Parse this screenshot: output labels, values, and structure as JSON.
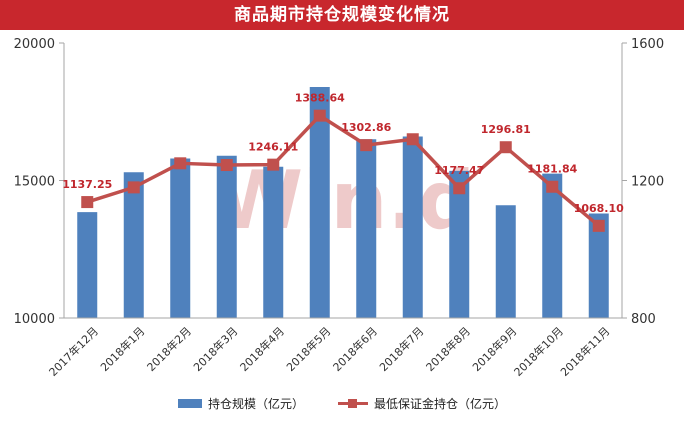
{
  "title": "商品期市持仓规模变化情况",
  "watermark": "Win.d",
  "colors": {
    "bar": "#4f81bd",
    "line": "#c0504d",
    "label": "#c0272d",
    "title_bg": "#c8272d",
    "watermark": "#e9b9b9"
  },
  "chart_data": {
    "type": "bar",
    "categories": [
      "2017年12月",
      "2018年1月",
      "2018年2月",
      "2018年3月",
      "2018年4月",
      "2018年5月",
      "2018年6月",
      "2018年7月",
      "2018年8月",
      "2018年9月",
      "2018年10月",
      "2018年11月"
    ],
    "y_left": {
      "min": 10000,
      "max": 20000,
      "ticks": [
        "10000",
        "15000",
        "20000"
      ]
    },
    "y_right": {
      "min": 800,
      "max": 1600,
      "ticks": [
        "800",
        "1200",
        "1600"
      ]
    },
    "series": [
      {
        "name": "持仓规模（亿元）",
        "type": "bar",
        "axis": "left",
        "values": [
          13850,
          15300,
          15800,
          15900,
          15500,
          18400,
          16500,
          16600,
          15350,
          14100,
          15250,
          13800
        ]
      },
      {
        "name": "最低保证金持仓（亿元）",
        "type": "line",
        "axis": "right",
        "values": [
          1137.25,
          1180,
          1250,
          1245,
          1246.11,
          1388.64,
          1302.86,
          1320,
          1177.47,
          1296.81,
          1181.84,
          1068.1
        ],
        "labels": [
          "1137.25",
          null,
          null,
          null,
          "1246.11",
          "1388.64",
          "1302.86",
          null,
          "1177.47",
          "1296.81",
          "1181.84",
          "1068.10"
        ]
      }
    ],
    "legend_position": "bottom",
    "grid": false
  }
}
